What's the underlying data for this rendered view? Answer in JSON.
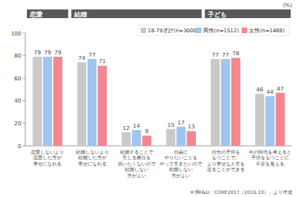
{
  "chart_data": {
    "type": "bar",
    "unit": "(%)",
    "note": "※博R&D「CORE2017（2016.10）」より作成",
    "categories": [
      "恋愛しないより\n恋愛した方が\n幸せになれる",
      "結婚しないより\n結婚した方が\n幸せになれる",
      "結婚することで\n生じる責任を\n負いたくないので\n結婚しない\n方がよい",
      "自由に\nやりたいことを\nやって生きたいので\n結婚しない\n方がよい",
      "自分の子供を\nもつことで、\nより幸せな人生を\n送ることができる",
      "今の時代を考えると\n子供をもつことに\n不安を覚える"
    ],
    "category_groups": [
      "恋愛",
      "結婚",
      "結婚",
      "結婚",
      "子ども",
      "子ども"
    ],
    "series": [
      {
        "name": "18-79才計(n=3000)",
        "color": "#c9c9c9",
        "values": [
          79,
          74,
          12,
          15,
          77,
          46
        ]
      },
      {
        "name": "男性(n=1512)",
        "color": "#9fc5f0",
        "values": [
          79,
          77,
          14,
          17,
          77,
          44
        ]
      },
      {
        "name": "女性(n=1488)",
        "color": "#f3868f",
        "values": [
          79,
          71,
          9,
          13,
          78,
          47
        ]
      }
    ],
    "ylim": [
      0,
      100
    ],
    "yticks": [
      0,
      20,
      40,
      60,
      80,
      100
    ],
    "grid": false,
    "legend": "top-right",
    "data_labels": true
  }
}
